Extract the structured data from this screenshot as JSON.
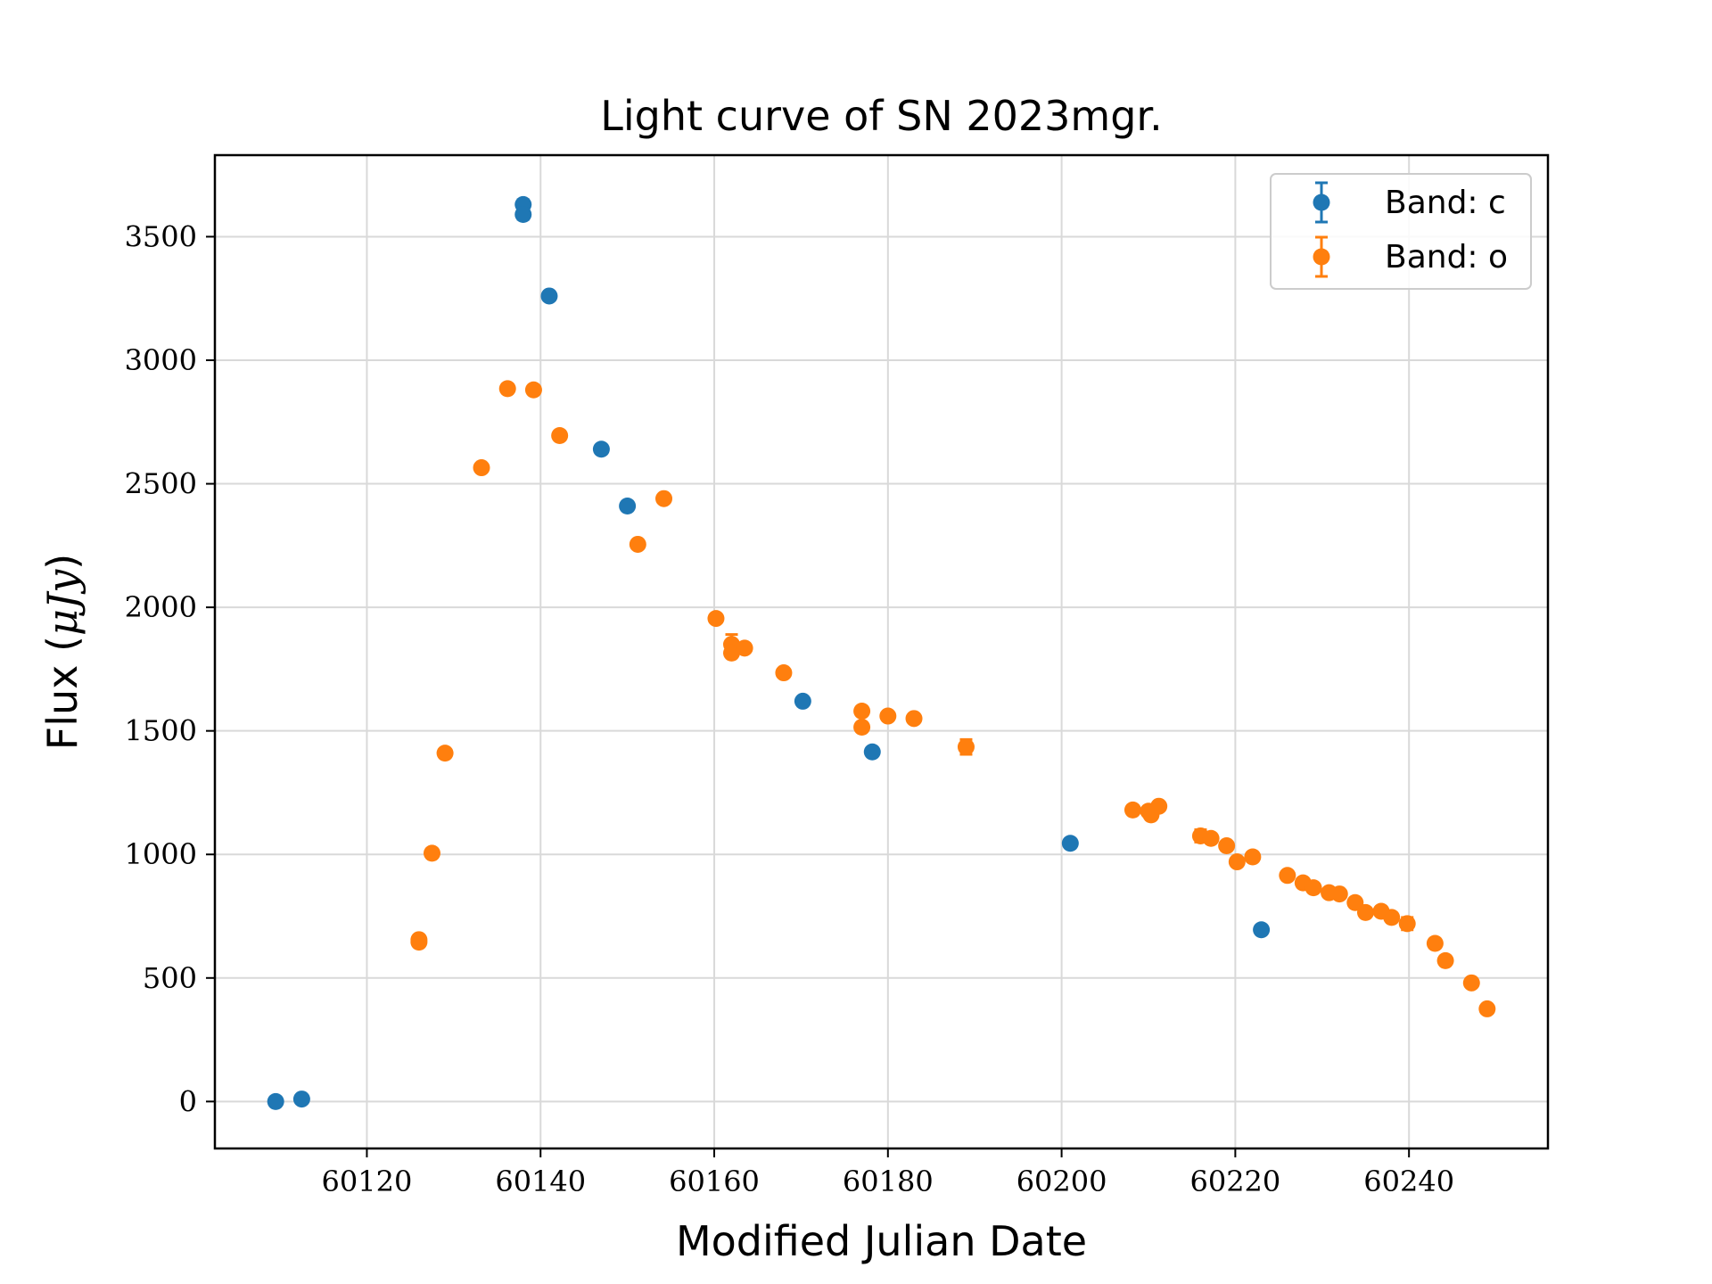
{
  "chart_data": {
    "type": "scatter",
    "title": "Light curve of SN 2023mgr.",
    "xlabel": "Modified Julian Date",
    "ylabel_prefix": "Flux (",
    "ylabel_math": "μJy",
    "ylabel_suffix": ")",
    "xlim": [
      60102.5,
      60256.0
    ],
    "ylim": [
      -190,
      3830
    ],
    "xticks": [
      60120,
      60140,
      60160,
      60180,
      60200,
      60220,
      60240
    ],
    "yticks": [
      0,
      500,
      1000,
      1500,
      2000,
      2500,
      3000,
      3500
    ],
    "grid": true,
    "legend_position": "top-right",
    "series": [
      {
        "name": "Band: c",
        "color": "#1f77b4",
        "x": [
          60109.5,
          60112.5,
          60138.0,
          60138.0,
          60141.0,
          60147.0,
          60150.0,
          60170.2,
          60178.2,
          60201.0,
          60223.0
        ],
        "y": [
          0,
          10,
          3630,
          3590,
          3260,
          2640,
          2410,
          1620,
          1415,
          1045,
          695
        ],
        "yerr": [
          10,
          10,
          20,
          20,
          15,
          15,
          15,
          15,
          15,
          15,
          15
        ]
      },
      {
        "name": "Band: o",
        "color": "#ff7f0e",
        "x": [
          60126.0,
          60126.0,
          60127.5,
          60129.0,
          60133.2,
          60136.2,
          60139.2,
          60142.2,
          60151.2,
          60154.2,
          60160.2,
          60162.0,
          60162.0,
          60163.5,
          60168.0,
          60177.0,
          60177.0,
          60180.0,
          60183.0,
          60189.0,
          60208.2,
          60210.0,
          60210.3,
          60211.2,
          60216.0,
          60217.2,
          60219.0,
          60220.2,
          60222.0,
          60226.0,
          60227.8,
          60229.0,
          60230.8,
          60232.0,
          60233.8,
          60235.0,
          60236.8,
          60238.0,
          60239.8,
          60243.0,
          60244.2,
          60247.2,
          60249.0
        ],
        "y": [
          655,
          645,
          1005,
          1410,
          2565,
          2885,
          2880,
          2695,
          2255,
          2440,
          1955,
          1850,
          1815,
          1835,
          1735,
          1580,
          1515,
          1560,
          1550,
          1435,
          1180,
          1175,
          1160,
          1195,
          1075,
          1065,
          1035,
          970,
          990,
          915,
          885,
          865,
          845,
          840,
          805,
          765,
          770,
          745,
          720,
          640,
          570,
          480,
          375
        ],
        "yerr": [
          15,
          15,
          15,
          15,
          15,
          15,
          15,
          15,
          15,
          15,
          15,
          40,
          15,
          15,
          15,
          15,
          15,
          15,
          15,
          30,
          15,
          15,
          15,
          15,
          25,
          15,
          15,
          15,
          15,
          15,
          15,
          15,
          15,
          15,
          15,
          15,
          15,
          15,
          25,
          15,
          15,
          15,
          15
        ]
      }
    ]
  }
}
